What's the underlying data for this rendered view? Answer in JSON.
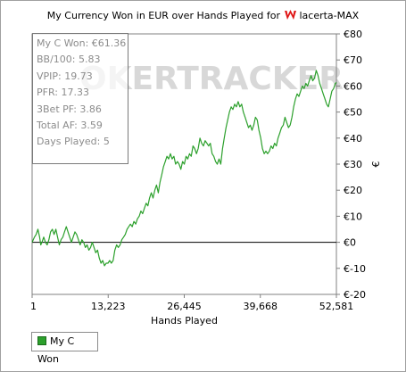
{
  "chart_data": {
    "type": "line",
    "title_prefix": "My Currency Won in EUR over Hands Played for",
    "player": "lacerta-MAX",
    "xlabel": "Hands Played",
    "ylabel": "€",
    "x_ticks": [
      "1",
      "13,223",
      "26,445",
      "39,668",
      "52,581"
    ],
    "xlim": [
      1,
      52581
    ],
    "y_ticks": [
      "€80",
      "€70",
      "€60",
      "€50",
      "€40",
      "€30",
      "€20",
      "€10",
      "€0",
      "€-10",
      "€-20"
    ],
    "ylim": [
      -20,
      80
    ],
    "grid": false,
    "legend_position": "bottom-left",
    "watermark": "OKERTRACKER",
    "series": [
      {
        "name": "My C Won",
        "color": "#2ca02c",
        "points": [
          [
            1,
            0
          ],
          [
            400,
            2
          ],
          [
            700,
            3
          ],
          [
            1000,
            5
          ],
          [
            1300,
            2
          ],
          [
            1500,
            -1
          ],
          [
            1700,
            0
          ],
          [
            2000,
            2
          ],
          [
            2300,
            0
          ],
          [
            2600,
            -1
          ],
          [
            2900,
            1
          ],
          [
            3200,
            4
          ],
          [
            3500,
            5
          ],
          [
            3800,
            3
          ],
          [
            4100,
            5
          ],
          [
            4400,
            2
          ],
          [
            4700,
            -1
          ],
          [
            5000,
            1
          ],
          [
            5300,
            2
          ],
          [
            5600,
            4
          ],
          [
            5900,
            6
          ],
          [
            6200,
            4
          ],
          [
            6500,
            2
          ],
          [
            6800,
            0
          ],
          [
            7100,
            2
          ],
          [
            7400,
            4
          ],
          [
            7700,
            3
          ],
          [
            8000,
            1
          ],
          [
            8300,
            -1
          ],
          [
            8600,
            1
          ],
          [
            8900,
            0
          ],
          [
            9200,
            -2
          ],
          [
            9500,
            -1
          ],
          [
            9800,
            -3
          ],
          [
            10100,
            -2
          ],
          [
            10400,
            0
          ],
          [
            10700,
            -2
          ],
          [
            11000,
            -4
          ],
          [
            11300,
            -3
          ],
          [
            11600,
            -6
          ],
          [
            11900,
            -8
          ],
          [
            12200,
            -7
          ],
          [
            12500,
            -9
          ],
          [
            12800,
            -8
          ],
          [
            13100,
            -8
          ],
          [
            13400,
            -7
          ],
          [
            13700,
            -8
          ],
          [
            14000,
            -7
          ],
          [
            14300,
            -3
          ],
          [
            14600,
            -1
          ],
          [
            14900,
            -2
          ],
          [
            15200,
            -1
          ],
          [
            15500,
            1
          ],
          [
            15800,
            2
          ],
          [
            16100,
            3
          ],
          [
            16400,
            5
          ],
          [
            16700,
            6
          ],
          [
            17000,
            7
          ],
          [
            17300,
            6
          ],
          [
            17600,
            8
          ],
          [
            17900,
            7
          ],
          [
            18200,
            9
          ],
          [
            18500,
            10
          ],
          [
            18800,
            12
          ],
          [
            19100,
            11
          ],
          [
            19400,
            13
          ],
          [
            19700,
            15
          ],
          [
            20000,
            14
          ],
          [
            20300,
            17
          ],
          [
            20600,
            19
          ],
          [
            20900,
            17
          ],
          [
            21200,
            20
          ],
          [
            21500,
            22
          ],
          [
            21800,
            19
          ],
          [
            22100,
            23
          ],
          [
            22400,
            26
          ],
          [
            22700,
            29
          ],
          [
            23000,
            31
          ],
          [
            23300,
            33
          ],
          [
            23600,
            32
          ],
          [
            23900,
            34
          ],
          [
            24200,
            32
          ],
          [
            24500,
            33
          ],
          [
            24800,
            30
          ],
          [
            25100,
            31
          ],
          [
            25400,
            30
          ],
          [
            25700,
            28
          ],
          [
            26000,
            31
          ],
          [
            26300,
            30
          ],
          [
            26600,
            33
          ],
          [
            26900,
            32
          ],
          [
            27200,
            34
          ],
          [
            27500,
            33
          ],
          [
            27800,
            37
          ],
          [
            28100,
            36
          ],
          [
            28400,
            34
          ],
          [
            28700,
            36
          ],
          [
            29000,
            40
          ],
          [
            29300,
            38
          ],
          [
            29600,
            37
          ],
          [
            29900,
            39
          ],
          [
            30200,
            38
          ],
          [
            30500,
            37
          ],
          [
            30800,
            38
          ],
          [
            31100,
            34
          ],
          [
            31400,
            33
          ],
          [
            31700,
            31
          ],
          [
            32000,
            30
          ],
          [
            32300,
            32
          ],
          [
            32600,
            30
          ],
          [
            32900,
            36
          ],
          [
            33200,
            40
          ],
          [
            33500,
            44
          ],
          [
            33800,
            47
          ],
          [
            34100,
            50
          ],
          [
            34400,
            52
          ],
          [
            34700,
            51
          ],
          [
            35000,
            53
          ],
          [
            35300,
            52
          ],
          [
            35600,
            54
          ],
          [
            35900,
            52
          ],
          [
            36200,
            53
          ],
          [
            36500,
            50
          ],
          [
            36800,
            48
          ],
          [
            37100,
            46
          ],
          [
            37400,
            44
          ],
          [
            37700,
            45
          ],
          [
            38000,
            43
          ],
          [
            38300,
            45
          ],
          [
            38600,
            48
          ],
          [
            38900,
            47
          ],
          [
            39200,
            43
          ],
          [
            39500,
            40
          ],
          [
            39800,
            36
          ],
          [
            40100,
            34
          ],
          [
            40400,
            35
          ],
          [
            40700,
            34
          ],
          [
            41000,
            35
          ],
          [
            41300,
            37
          ],
          [
            41600,
            36
          ],
          [
            41900,
            38
          ],
          [
            42200,
            37
          ],
          [
            42500,
            40
          ],
          [
            42800,
            42
          ],
          [
            43100,
            44
          ],
          [
            43400,
            45
          ],
          [
            43700,
            48
          ],
          [
            44000,
            46
          ],
          [
            44300,
            44
          ],
          [
            44600,
            45
          ],
          [
            44900,
            48
          ],
          [
            45200,
            52
          ],
          [
            45500,
            55
          ],
          [
            45800,
            57
          ],
          [
            46100,
            56
          ],
          [
            46400,
            58
          ],
          [
            46700,
            60
          ],
          [
            47000,
            59
          ],
          [
            47300,
            61
          ],
          [
            47600,
            60
          ],
          [
            47900,
            62
          ],
          [
            48200,
            64
          ],
          [
            48500,
            62
          ],
          [
            48800,
            63
          ],
          [
            49100,
            66
          ],
          [
            49400,
            64
          ],
          [
            49700,
            61
          ],
          [
            50000,
            59
          ],
          [
            50300,
            57
          ],
          [
            50600,
            55
          ],
          [
            50900,
            53
          ],
          [
            51200,
            52
          ],
          [
            51500,
            55
          ],
          [
            51800,
            58
          ],
          [
            52100,
            59
          ],
          [
            52400,
            61
          ],
          [
            52581,
            61.36
          ]
        ]
      }
    ]
  },
  "stats_box": [
    "My C Won: €61.36",
    "BB/100: 5.83",
    "VPIP: 19.73",
    "PFR: 17.33",
    "3Bet PF: 3.86",
    "Total AF: 3.59",
    "Days Played: 5"
  ],
  "legend": {
    "label": "My C Won",
    "color": "#2ca02c"
  }
}
